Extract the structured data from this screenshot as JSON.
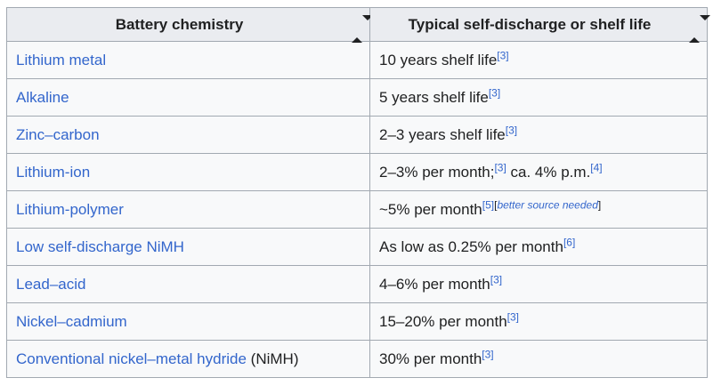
{
  "colors": {
    "link": "#3366cc",
    "text": "#202122",
    "header_bg": "#eaecf0",
    "row_bg": "#f8f9fa",
    "border": "#a2a9b1",
    "page_bg": "#ffffff"
  },
  "table": {
    "columns": [
      {
        "label": "Battery chemistry",
        "sortable": true,
        "sort_icon": "sort-arrows-icon"
      },
      {
        "label": "Typical self-discharge or shelf life",
        "sortable": true,
        "sort_icon": "sort-arrows-icon"
      }
    ],
    "rows": [
      {
        "chemistry": {
          "link": "Lithium metal",
          "suffix": ""
        },
        "value": [
          {
            "type": "text",
            "text": "10 years shelf life"
          },
          {
            "type": "ref",
            "text": "[3]"
          }
        ]
      },
      {
        "chemistry": {
          "link": "Alkaline",
          "suffix": ""
        },
        "value": [
          {
            "type": "text",
            "text": "5 years shelf life"
          },
          {
            "type": "ref",
            "text": "[3]"
          }
        ]
      },
      {
        "chemistry": {
          "link": "Zinc–carbon",
          "suffix": ""
        },
        "value": [
          {
            "type": "text",
            "text": "2–3 years shelf life"
          },
          {
            "type": "ref",
            "text": "[3]"
          }
        ]
      },
      {
        "chemistry": {
          "link": "Lithium-ion",
          "suffix": ""
        },
        "value": [
          {
            "type": "text",
            "text": "2–3% per month;"
          },
          {
            "type": "ref",
            "text": "[3]"
          },
          {
            "type": "text",
            "text": " ca. 4% p.m."
          },
          {
            "type": "ref",
            "text": "[4]"
          }
        ]
      },
      {
        "chemistry": {
          "link": "Lithium-polymer",
          "suffix": ""
        },
        "value": [
          {
            "type": "text",
            "text": "~5% per month"
          },
          {
            "type": "ref",
            "text": "[5]"
          },
          {
            "type": "tagref",
            "open": "[",
            "label": "better source needed",
            "close": "]"
          }
        ]
      },
      {
        "chemistry": {
          "link": "Low self-discharge NiMH",
          "suffix": ""
        },
        "value": [
          {
            "type": "text",
            "text": "As low as 0.25% per month"
          },
          {
            "type": "ref",
            "text": "[6]"
          }
        ]
      },
      {
        "chemistry": {
          "link": "Lead–acid",
          "suffix": ""
        },
        "value": [
          {
            "type": "text",
            "text": "4–6% per month"
          },
          {
            "type": "ref",
            "text": "[3]"
          }
        ]
      },
      {
        "chemistry": {
          "link": "Nickel–cadmium",
          "suffix": ""
        },
        "value": [
          {
            "type": "text",
            "text": "15–20% per month"
          },
          {
            "type": "ref",
            "text": "[3]"
          }
        ]
      },
      {
        "chemistry": {
          "link": "Conventional nickel–metal hydride",
          "suffix": " (NiMH)"
        },
        "value": [
          {
            "type": "text",
            "text": "30% per month"
          },
          {
            "type": "ref",
            "text": "[3]"
          }
        ]
      }
    ]
  }
}
